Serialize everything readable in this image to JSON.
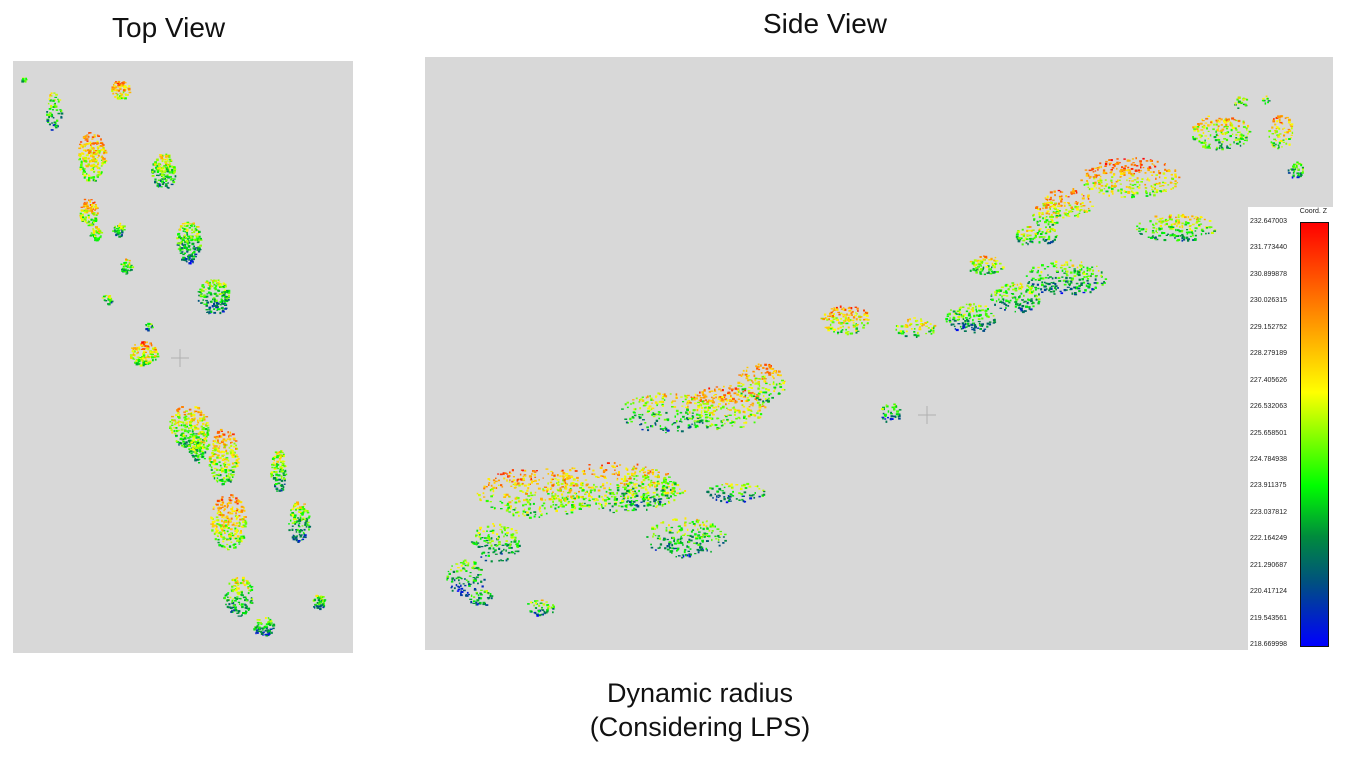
{
  "top_view": {
    "title": "Top View"
  },
  "side_view": {
    "title": "Side View"
  },
  "colorbar": {
    "title": "Coord. Z",
    "ticks": [
      "232.647003",
      "231.773440",
      "230.899878",
      "230.026315",
      "229.152752",
      "228.279189",
      "227.405626",
      "226.532063",
      "225.658501",
      "224.784938",
      "223.911375",
      "223.037812",
      "222.164249",
      "221.290687",
      "220.417124",
      "219.543561",
      "218.669998"
    ]
  },
  "caption": {
    "line1": "Dynamic radius",
    "line2": "(Considering LPS)"
  },
  "colors": {
    "panel_bg": "#d8d8d8",
    "high": "#ff0000",
    "mid_high": "#ffff00",
    "mid": "#00ff00",
    "low": "#0000ff"
  }
}
